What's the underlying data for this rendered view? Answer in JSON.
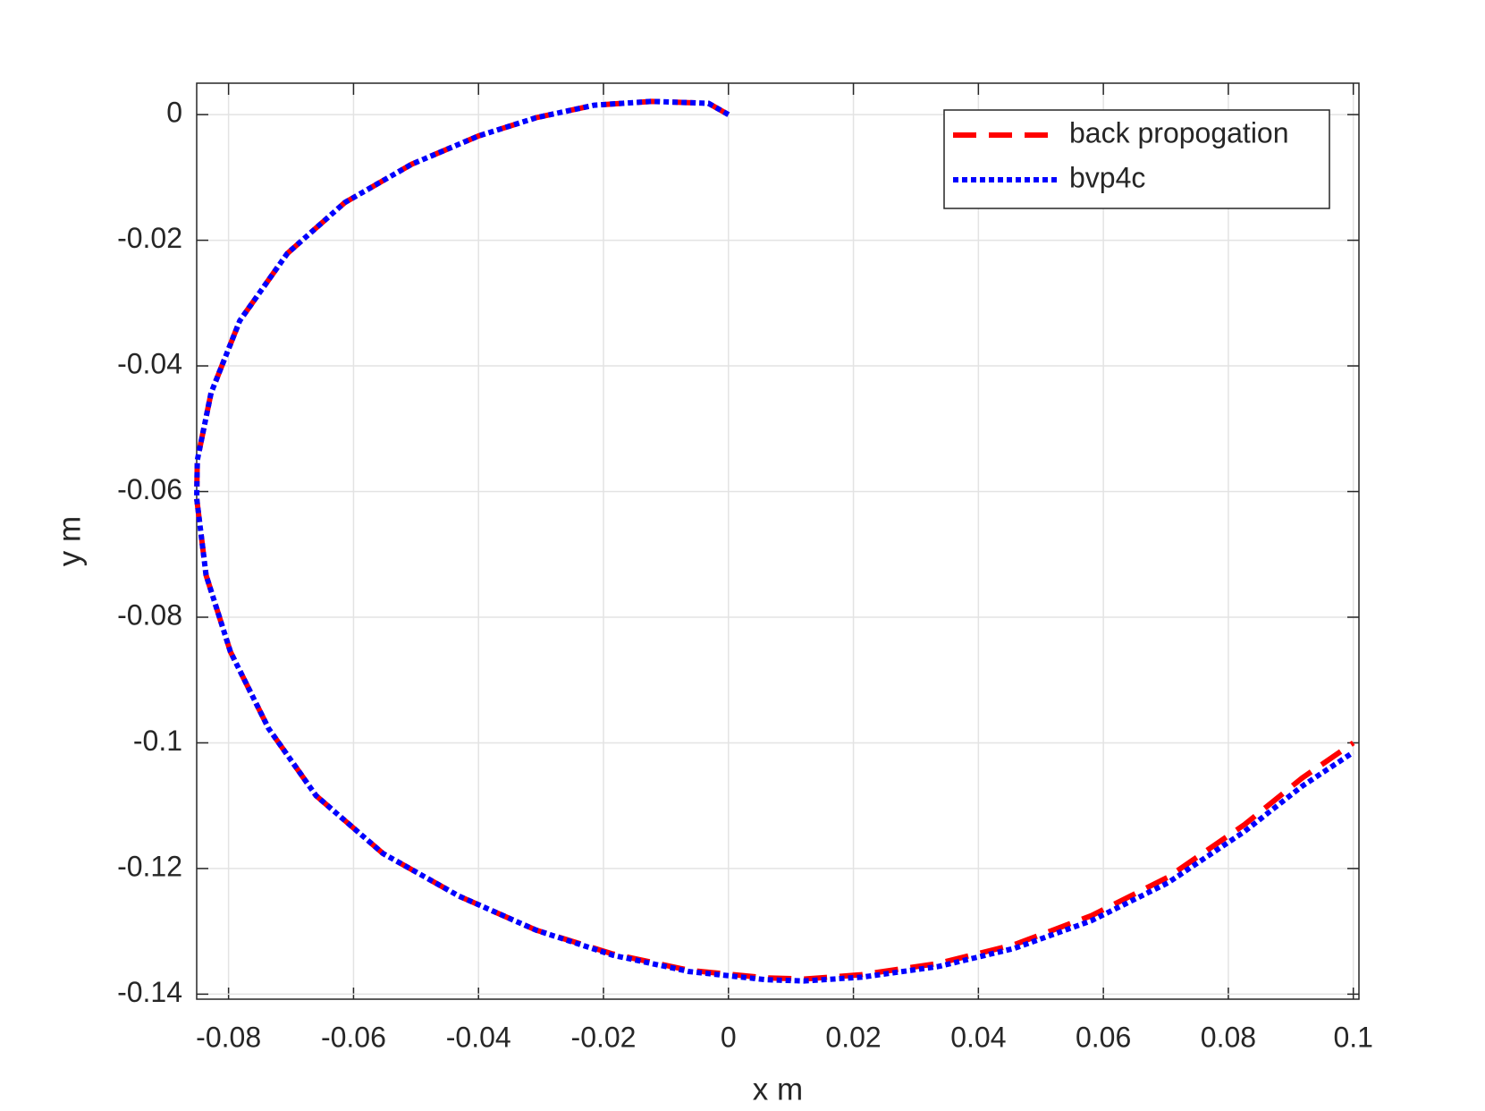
{
  "chart_data": {
    "type": "line",
    "x_label": "x m",
    "y_label": "y m",
    "xlim": [
      -0.0851,
      0.1009
    ],
    "ylim": [
      -0.1408,
      0.005
    ],
    "xticks": [
      -0.08,
      -0.06,
      -0.04,
      -0.02,
      0,
      0.02,
      0.04,
      0.06,
      0.08,
      0.1
    ],
    "yticks": [
      -0.14,
      -0.12,
      -0.1,
      -0.08,
      -0.06,
      -0.04,
      -0.02,
      0
    ],
    "grid": true,
    "legend": "upper right",
    "series": [
      {
        "name": "back propogation",
        "color": "#ff0000",
        "dash": "dashed",
        "x": [
          0,
          -0.0032,
          -0.0123,
          -0.0215,
          -0.0308,
          -0.04,
          -0.0507,
          -0.0614,
          -0.0706,
          -0.0782,
          -0.0828,
          -0.085,
          -0.0851,
          -0.0836,
          -0.0797,
          -0.0736,
          -0.066,
          -0.0553,
          -0.0431,
          -0.0308,
          -0.0185,
          -0.0063,
          0.006,
          0.0121,
          0.0213,
          0.0336,
          0.0458,
          0.0581,
          0.0703,
          0.0826,
          0.0918,
          0.1
        ],
        "y": [
          0,
          0.0018,
          0.0021,
          0.0015,
          -0.0005,
          -0.0034,
          -0.0079,
          -0.014,
          -0.0221,
          -0.0328,
          -0.0443,
          -0.055,
          -0.0611,
          -0.0733,
          -0.0855,
          -0.0977,
          -0.1084,
          -0.1176,
          -0.1244,
          -0.1298,
          -0.1336,
          -0.1362,
          -0.1374,
          -0.1376,
          -0.1369,
          -0.1351,
          -0.1321,
          -0.1275,
          -0.1214,
          -0.113,
          -0.1056,
          -0.1
        ]
      },
      {
        "name": "bvp4c",
        "color": "#0000ff",
        "dash": "dotted",
        "x": [
          0,
          -0.0032,
          -0.0123,
          -0.0215,
          -0.0308,
          -0.04,
          -0.0507,
          -0.0614,
          -0.0706,
          -0.0782,
          -0.0828,
          -0.085,
          -0.0851,
          -0.0836,
          -0.0797,
          -0.0736,
          -0.066,
          -0.0553,
          -0.0431,
          -0.0308,
          -0.0185,
          -0.0063,
          0.006,
          0.0121,
          0.0213,
          0.0336,
          0.0458,
          0.0581,
          0.0703,
          0.0826,
          0.0918,
          0.1
        ],
        "y": [
          0,
          0.0018,
          0.0021,
          0.0015,
          -0.0005,
          -0.0034,
          -0.0079,
          -0.014,
          -0.0221,
          -0.0328,
          -0.0443,
          -0.055,
          -0.0611,
          -0.0733,
          -0.0855,
          -0.0977,
          -0.1084,
          -0.1176,
          -0.1244,
          -0.1298,
          -0.1338,
          -0.1364,
          -0.1377,
          -0.1379,
          -0.1373,
          -0.1356,
          -0.1327,
          -0.1283,
          -0.1223,
          -0.1141,
          -0.1069,
          -0.1015
        ]
      }
    ]
  }
}
